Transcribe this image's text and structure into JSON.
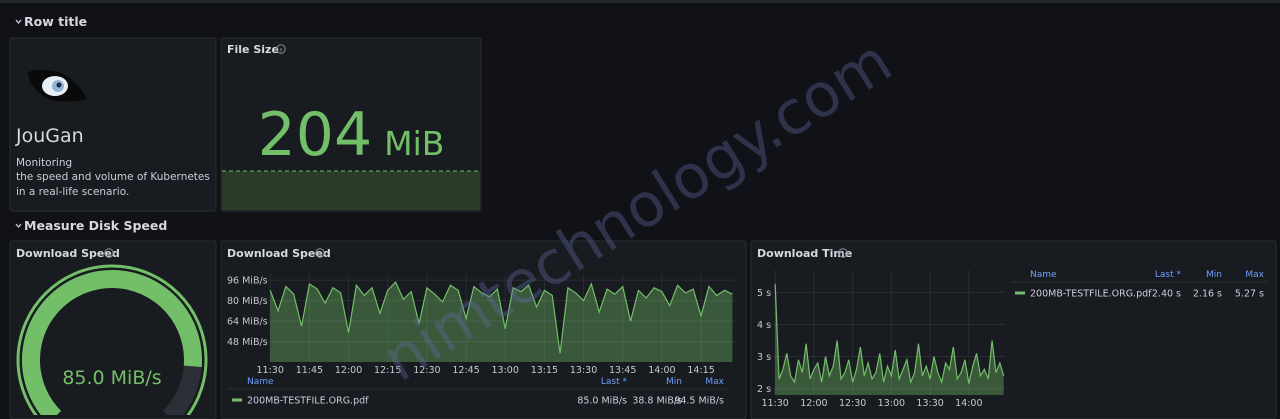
{
  "rows": [
    {
      "title": "Row title"
    },
    {
      "title": "Measure Disk Speed"
    }
  ],
  "text_panel": {
    "title": "JouGan",
    "lines": [
      "Monitoring",
      "the speed and volume of Kubernetes",
      "in a real-life scenario."
    ]
  },
  "watermark": "nimtechnology.com",
  "chart_data": [
    {
      "type": "stat",
      "title": "File Size",
      "values": [
        204
      ],
      "unit": "MiB",
      "color": "#73bf69"
    },
    {
      "type": "gauge",
      "title": "Download Speed",
      "values": [
        85.0
      ],
      "value_labels": [
        "85.0 MiB/s"
      ],
      "ylim": [
        0,
        100
      ],
      "color": "#73bf69"
    },
    {
      "type": "line",
      "title": "Download Speed",
      "xlim": [
        "11:28",
        "14:28"
      ],
      "xticks": [
        "11:30",
        "11:45",
        "12:00",
        "12:15",
        "12:30",
        "12:45",
        "13:00",
        "13:15",
        "13:30",
        "13:45",
        "14:00",
        "14:15"
      ],
      "ylim": [
        32,
        100
      ],
      "yticks": [
        {
          "value": 48,
          "label": "48 MiB/s"
        },
        {
          "value": 64,
          "label": "64 MiB/s"
        },
        {
          "value": 80,
          "label": "80 MiB/s"
        },
        {
          "value": 96,
          "label": "96 MiB/s"
        }
      ],
      "grid": true,
      "x": [
        "11:30",
        "11:33",
        "11:36",
        "11:39",
        "11:42",
        "11:45",
        "11:48",
        "11:51",
        "11:54",
        "11:57",
        "12:00",
        "12:03",
        "12:06",
        "12:09",
        "12:12",
        "12:15",
        "12:18",
        "12:21",
        "12:24",
        "12:27",
        "12:30",
        "12:33",
        "12:36",
        "12:39",
        "12:42",
        "12:45",
        "12:48",
        "12:51",
        "12:54",
        "12:57",
        "13:00",
        "13:03",
        "13:06",
        "13:09",
        "13:12",
        "13:15",
        "13:18",
        "13:21",
        "13:24",
        "13:27",
        "13:30",
        "13:33",
        "13:36",
        "13:39",
        "13:42",
        "13:45",
        "13:48",
        "13:51",
        "13:54",
        "13:57",
        "14:00",
        "14:03",
        "14:06",
        "14:09",
        "14:12",
        "14:15",
        "14:18",
        "14:21",
        "14:24",
        "14:27"
      ],
      "series": [
        {
          "name": "200MB-TESTFILE.ORG.pdf",
          "color": "#73bf69",
          "values": [
            88,
            72,
            91,
            85,
            60,
            93,
            89,
            78,
            90,
            86,
            55,
            92,
            84,
            90,
            70,
            88,
            94.5,
            81,
            87,
            62,
            90,
            85,
            79,
            92,
            88,
            66,
            91,
            86,
            83,
            89,
            58,
            90,
            87,
            92,
            75,
            88,
            84,
            38.8,
            90,
            86,
            80,
            93,
            71,
            89,
            85,
            91,
            64,
            88,
            82,
            90,
            87,
            76,
            92,
            86,
            89,
            68,
            91,
            84,
            88,
            85.0
          ]
        }
      ],
      "legend": {
        "columns": [
          "Name",
          "Last *",
          "Min",
          "Max"
        ],
        "stats": [
          "85.0 MiB/s",
          "38.8 MiB/s",
          "94.5 MiB/s"
        ]
      }
    },
    {
      "type": "line",
      "title": "Download Time",
      "xlim": [
        "11:26",
        "14:28"
      ],
      "xticks": [
        "11:30",
        "12:00",
        "12:30",
        "13:00",
        "13:30",
        "14:00"
      ],
      "ylim": [
        1.8,
        5.7
      ],
      "yticks": [
        {
          "value": 2,
          "label": "2 s"
        },
        {
          "value": 3,
          "label": "3 s"
        },
        {
          "value": 4,
          "label": "4 s"
        },
        {
          "value": 5,
          "label": "5 s"
        }
      ],
      "grid": true,
      "x": [
        "11:30",
        "11:33",
        "11:36",
        "11:39",
        "11:42",
        "11:45",
        "11:48",
        "11:51",
        "11:54",
        "11:57",
        "12:00",
        "12:03",
        "12:06",
        "12:09",
        "12:12",
        "12:15",
        "12:18",
        "12:21",
        "12:24",
        "12:27",
        "12:30",
        "12:33",
        "12:36",
        "12:39",
        "12:42",
        "12:45",
        "12:48",
        "12:51",
        "12:54",
        "12:57",
        "13:00",
        "13:03",
        "13:06",
        "13:09",
        "13:12",
        "13:15",
        "13:18",
        "13:21",
        "13:24",
        "13:27",
        "13:30",
        "13:33",
        "13:36",
        "13:39",
        "13:42",
        "13:45",
        "13:48",
        "13:51",
        "13:54",
        "13:57",
        "14:00",
        "14:03",
        "14:06",
        "14:09",
        "14:12",
        "14:15",
        "14:18",
        "14:21",
        "14:24",
        "14:27"
      ],
      "series": [
        {
          "name": "200MB-TESTFILE.ORG.pdf",
          "color": "#73bf69",
          "values": [
            5.27,
            2.3,
            2.6,
            3.1,
            2.4,
            2.2,
            2.9,
            2.5,
            3.4,
            2.3,
            2.6,
            2.8,
            2.2,
            3.0,
            2.4,
            2.7,
            3.5,
            2.3,
            2.5,
            2.9,
            2.2,
            2.6,
            3.3,
            2.4,
            2.8,
            2.3,
            2.5,
            3.1,
            2.2,
            2.7,
            2.4,
            3.2,
            2.3,
            2.6,
            2.9,
            2.2,
            2.5,
            3.4,
            2.4,
            2.7,
            2.3,
            3.0,
            2.5,
            2.2,
            2.8,
            2.6,
            3.3,
            2.3,
            2.5,
            2.9,
            2.16,
            2.7,
            3.1,
            2.4,
            2.6,
            2.3,
            3.5,
            2.5,
            2.8,
            2.4
          ]
        }
      ],
      "legend": {
        "columns": [
          "Name",
          "Last *",
          "Min",
          "Max"
        ],
        "stats": [
          "2.40 s",
          "2.16 s",
          "5.27 s"
        ]
      }
    }
  ]
}
